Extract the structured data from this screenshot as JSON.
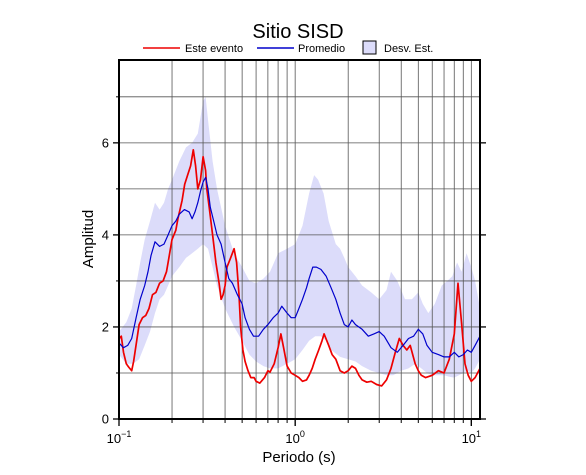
{
  "chart_data": {
    "type": "line",
    "title": "Sitio SISD",
    "xlabel": "Periodo (s)",
    "ylabel": "Amplitud",
    "x_scale": "log",
    "xlim": [
      0.1,
      11.2
    ],
    "ylim": [
      0,
      7.8
    ],
    "grid": true,
    "legend_position": "top",
    "x_ticks": [
      {
        "value": 0.1,
        "base": "10",
        "exp": "−1"
      },
      {
        "value": 1,
        "base": "10",
        "exp": "0"
      },
      {
        "value": 10,
        "base": "10",
        "exp": "1"
      }
    ],
    "y_ticks": [
      0,
      2,
      4,
      6
    ],
    "legend": {
      "line1": "Este evento",
      "line2": "Promedio",
      "band": "Desv. Est."
    },
    "series": [
      {
        "name": "Este evento",
        "color": "#ee0000",
        "points": [
          [
            0.1,
            1.75
          ],
          [
            0.103,
            1.8
          ],
          [
            0.106,
            1.45
          ],
          [
            0.11,
            1.2
          ],
          [
            0.114,
            1.12
          ],
          [
            0.118,
            1.05
          ],
          [
            0.121,
            1.25
          ],
          [
            0.126,
            1.7
          ],
          [
            0.13,
            2.05
          ],
          [
            0.136,
            2.2
          ],
          [
            0.142,
            2.25
          ],
          [
            0.148,
            2.4
          ],
          [
            0.155,
            2.7
          ],
          [
            0.162,
            2.75
          ],
          [
            0.17,
            2.95
          ],
          [
            0.178,
            3.0
          ],
          [
            0.186,
            3.2
          ],
          [
            0.19,
            3.4
          ],
          [
            0.2,
            3.9
          ],
          [
            0.21,
            4.1
          ],
          [
            0.216,
            4.35
          ],
          [
            0.228,
            4.75
          ],
          [
            0.236,
            5.1
          ],
          [
            0.245,
            5.3
          ],
          [
            0.255,
            5.5
          ],
          [
            0.264,
            5.85
          ],
          [
            0.272,
            5.5
          ],
          [
            0.28,
            5.0
          ],
          [
            0.29,
            5.2
          ],
          [
            0.3,
            5.7
          ],
          [
            0.31,
            5.4
          ],
          [
            0.315,
            5.0
          ],
          [
            0.325,
            4.6
          ],
          [
            0.34,
            4.0
          ],
          [
            0.355,
            3.4
          ],
          [
            0.37,
            2.95
          ],
          [
            0.38,
            2.6
          ],
          [
            0.39,
            2.7
          ],
          [
            0.4,
            2.9
          ],
          [
            0.41,
            3.3
          ],
          [
            0.43,
            3.5
          ],
          [
            0.45,
            3.7
          ],
          [
            0.465,
            3.4
          ],
          [
            0.48,
            2.7
          ],
          [
            0.49,
            2.0
          ],
          [
            0.505,
            1.5
          ],
          [
            0.52,
            1.25
          ],
          [
            0.54,
            1.05
          ],
          [
            0.56,
            0.9
          ],
          [
            0.585,
            0.9
          ],
          [
            0.6,
            0.82
          ],
          [
            0.63,
            0.78
          ],
          [
            0.67,
            0.9
          ],
          [
            0.7,
            1.05
          ],
          [
            0.72,
            1.02
          ],
          [
            0.76,
            1.2
          ],
          [
            0.8,
            1.55
          ],
          [
            0.83,
            1.85
          ],
          [
            0.86,
            1.55
          ],
          [
            0.9,
            1.15
          ],
          [
            0.95,
            1.0
          ],
          [
            1.0,
            0.95
          ],
          [
            1.05,
            0.9
          ],
          [
            1.1,
            0.82
          ],
          [
            1.16,
            0.85
          ],
          [
            1.2,
            0.95
          ],
          [
            1.25,
            1.1
          ],
          [
            1.3,
            1.3
          ],
          [
            1.36,
            1.5
          ],
          [
            1.42,
            1.7
          ],
          [
            1.46,
            1.85
          ],
          [
            1.55,
            1.6
          ],
          [
            1.62,
            1.4
          ],
          [
            1.7,
            1.3
          ],
          [
            1.8,
            1.05
          ],
          [
            1.9,
            1.0
          ],
          [
            2.0,
            1.05
          ],
          [
            2.1,
            1.15
          ],
          [
            2.2,
            1.1
          ],
          [
            2.3,
            0.95
          ],
          [
            2.4,
            0.85
          ],
          [
            2.55,
            0.8
          ],
          [
            2.7,
            0.82
          ],
          [
            2.9,
            0.75
          ],
          [
            3.1,
            0.72
          ],
          [
            3.3,
            0.85
          ],
          [
            3.5,
            1.1
          ],
          [
            3.7,
            1.45
          ],
          [
            3.9,
            1.75
          ],
          [
            4.1,
            1.6
          ],
          [
            4.3,
            1.5
          ],
          [
            4.5,
            1.6
          ],
          [
            4.8,
            1.2
          ],
          [
            5.0,
            1.05
          ],
          [
            5.2,
            0.95
          ],
          [
            5.5,
            0.9
          ],
          [
            6.0,
            0.95
          ],
          [
            6.5,
            1.05
          ],
          [
            7.0,
            1.0
          ],
          [
            7.5,
            1.3
          ],
          [
            8.0,
            1.85
          ],
          [
            8.4,
            2.95
          ],
          [
            8.8,
            2.1
          ],
          [
            9.2,
            1.2
          ],
          [
            9.6,
            0.95
          ],
          [
            10.0,
            0.82
          ],
          [
            10.5,
            0.9
          ],
          [
            11.2,
            1.1
          ]
        ]
      },
      {
        "name": "Promedio",
        "color": "#0000cc",
        "points": [
          [
            0.1,
            1.65
          ],
          [
            0.106,
            1.55
          ],
          [
            0.112,
            1.6
          ],
          [
            0.118,
            1.75
          ],
          [
            0.125,
            2.2
          ],
          [
            0.132,
            2.6
          ],
          [
            0.14,
            2.9
          ],
          [
            0.146,
            3.2
          ],
          [
            0.152,
            3.55
          ],
          [
            0.16,
            3.85
          ],
          [
            0.17,
            3.75
          ],
          [
            0.18,
            3.8
          ],
          [
            0.19,
            4.0
          ],
          [
            0.2,
            4.2
          ],
          [
            0.21,
            4.3
          ],
          [
            0.22,
            4.45
          ],
          [
            0.235,
            4.55
          ],
          [
            0.25,
            4.5
          ],
          [
            0.26,
            4.35
          ],
          [
            0.27,
            4.5
          ],
          [
            0.28,
            4.7
          ],
          [
            0.29,
            4.95
          ],
          [
            0.3,
            5.15
          ],
          [
            0.31,
            5.25
          ],
          [
            0.32,
            5.0
          ],
          [
            0.33,
            4.6
          ],
          [
            0.345,
            4.3
          ],
          [
            0.36,
            4.0
          ],
          [
            0.38,
            3.8
          ],
          [
            0.4,
            3.4
          ],
          [
            0.42,
            3.05
          ],
          [
            0.44,
            2.95
          ],
          [
            0.47,
            2.7
          ],
          [
            0.5,
            2.5
          ],
          [
            0.52,
            2.2
          ],
          [
            0.55,
            1.95
          ],
          [
            0.58,
            1.8
          ],
          [
            0.62,
            1.8
          ],
          [
            0.66,
            1.95
          ],
          [
            0.7,
            2.05
          ],
          [
            0.75,
            2.2
          ],
          [
            0.8,
            2.3
          ],
          [
            0.84,
            2.45
          ],
          [
            0.9,
            2.3
          ],
          [
            0.95,
            2.2
          ],
          [
            1.0,
            2.2
          ],
          [
            1.05,
            2.4
          ],
          [
            1.1,
            2.6
          ],
          [
            1.16,
            2.85
          ],
          [
            1.2,
            3.05
          ],
          [
            1.26,
            3.3
          ],
          [
            1.32,
            3.3
          ],
          [
            1.4,
            3.25
          ],
          [
            1.5,
            3.1
          ],
          [
            1.6,
            2.85
          ],
          [
            1.7,
            2.6
          ],
          [
            1.8,
            2.3
          ],
          [
            1.9,
            2.05
          ],
          [
            2.0,
            2.0
          ],
          [
            2.1,
            2.15
          ],
          [
            2.2,
            2.05
          ],
          [
            2.4,
            1.95
          ],
          [
            2.6,
            1.8
          ],
          [
            2.8,
            1.85
          ],
          [
            3.0,
            1.9
          ],
          [
            3.2,
            1.8
          ],
          [
            3.5,
            1.55
          ],
          [
            3.8,
            1.45
          ],
          [
            4.1,
            1.6
          ],
          [
            4.4,
            1.75
          ],
          [
            4.7,
            1.8
          ],
          [
            5.0,
            1.95
          ],
          [
            5.3,
            1.85
          ],
          [
            5.6,
            1.6
          ],
          [
            6.0,
            1.45
          ],
          [
            6.5,
            1.4
          ],
          [
            7.0,
            1.35
          ],
          [
            7.5,
            1.35
          ],
          [
            8.0,
            1.45
          ],
          [
            8.5,
            1.35
          ],
          [
            9.0,
            1.4
          ],
          [
            9.5,
            1.5
          ],
          [
            10.0,
            1.45
          ],
          [
            10.5,
            1.6
          ],
          [
            11.2,
            1.8
          ]
        ]
      }
    ],
    "std_band": {
      "name": "Desv. Est.",
      "fill": "#dcdcfa",
      "upper": [
        [
          0.1,
          1.9
        ],
        [
          0.11,
          2.1
        ],
        [
          0.118,
          2.4
        ],
        [
          0.125,
          2.9
        ],
        [
          0.132,
          3.4
        ],
        [
          0.14,
          3.9
        ],
        [
          0.15,
          4.3
        ],
        [
          0.16,
          4.7
        ],
        [
          0.17,
          4.55
        ],
        [
          0.18,
          4.7
        ],
        [
          0.19,
          5.0
        ],
        [
          0.2,
          5.2
        ],
        [
          0.22,
          5.6
        ],
        [
          0.24,
          5.9
        ],
        [
          0.26,
          6.0
        ],
        [
          0.28,
          6.2
        ],
        [
          0.3,
          6.9
        ],
        [
          0.31,
          7.0
        ],
        [
          0.32,
          6.5
        ],
        [
          0.34,
          5.6
        ],
        [
          0.36,
          5.0
        ],
        [
          0.4,
          4.2
        ],
        [
          0.45,
          3.6
        ],
        [
          0.5,
          3.3
        ],
        [
          0.55,
          3.0
        ],
        [
          0.6,
          2.95
        ],
        [
          0.66,
          3.05
        ],
        [
          0.72,
          3.2
        ],
        [
          0.8,
          3.6
        ],
        [
          0.9,
          3.7
        ],
        [
          1.0,
          3.8
        ],
        [
          1.1,
          4.2
        ],
        [
          1.2,
          4.9
        ],
        [
          1.28,
          5.3
        ],
        [
          1.35,
          5.2
        ],
        [
          1.45,
          4.9
        ],
        [
          1.55,
          4.3
        ],
        [
          1.7,
          3.8
        ],
        [
          1.8,
          3.7
        ],
        [
          1.9,
          3.5
        ],
        [
          2.0,
          3.3
        ],
        [
          2.2,
          3.1
        ],
        [
          2.4,
          2.9
        ],
        [
          2.7,
          2.75
        ],
        [
          3.0,
          2.6
        ],
        [
          3.3,
          2.8
        ],
        [
          3.5,
          3.2
        ],
        [
          3.8,
          3.0
        ],
        [
          4.2,
          2.6
        ],
        [
          4.6,
          2.6
        ],
        [
          5.0,
          2.75
        ],
        [
          5.3,
          2.5
        ],
        [
          5.7,
          2.3
        ],
        [
          6.2,
          2.5
        ],
        [
          6.8,
          2.9
        ],
        [
          7.3,
          3.0
        ],
        [
          7.8,
          3.1
        ],
        [
          8.3,
          3.4
        ],
        [
          8.8,
          3.2
        ],
        [
          9.4,
          3.6
        ],
        [
          10.0,
          3.3
        ],
        [
          10.5,
          3.0
        ],
        [
          11.2,
          2.4
        ]
      ],
      "lower": [
        [
          0.1,
          1.4
        ],
        [
          0.11,
          1.2
        ],
        [
          0.12,
          1.2
        ],
        [
          0.13,
          1.3
        ],
        [
          0.14,
          1.6
        ],
        [
          0.15,
          1.9
        ],
        [
          0.16,
          2.3
        ],
        [
          0.17,
          2.6
        ],
        [
          0.18,
          2.7
        ],
        [
          0.19,
          2.9
        ],
        [
          0.2,
          3.1
        ],
        [
          0.22,
          3.3
        ],
        [
          0.24,
          3.5
        ],
        [
          0.26,
          3.6
        ],
        [
          0.28,
          3.7
        ],
        [
          0.3,
          3.8
        ],
        [
          0.32,
          3.7
        ],
        [
          0.34,
          3.3
        ],
        [
          0.36,
          2.9
        ],
        [
          0.4,
          2.4
        ],
        [
          0.45,
          2.0
        ],
        [
          0.5,
          1.7
        ],
        [
          0.55,
          1.4
        ],
        [
          0.6,
          1.25
        ],
        [
          0.66,
          1.15
        ],
        [
          0.72,
          1.1
        ],
        [
          0.8,
          1.1
        ],
        [
          0.9,
          1.2
        ],
        [
          1.0,
          1.3
        ],
        [
          1.1,
          1.5
        ],
        [
          1.2,
          1.7
        ],
        [
          1.3,
          1.8
        ],
        [
          1.4,
          1.8
        ],
        [
          1.5,
          1.7
        ],
        [
          1.6,
          1.5
        ],
        [
          1.8,
          1.35
        ],
        [
          2.0,
          1.3
        ],
        [
          2.2,
          1.25
        ],
        [
          2.4,
          1.15
        ],
        [
          2.7,
          1.05
        ],
        [
          3.0,
          1.0
        ],
        [
          3.3,
          0.95
        ],
        [
          3.6,
          0.95
        ],
        [
          4.0,
          1.05
        ],
        [
          4.4,
          1.1
        ],
        [
          4.8,
          1.2
        ],
        [
          5.2,
          1.1
        ],
        [
          5.6,
          1.0
        ],
        [
          6.0,
          0.95
        ],
        [
          6.5,
          0.95
        ],
        [
          7.0,
          0.95
        ],
        [
          7.5,
          0.92
        ],
        [
          8.0,
          0.9
        ],
        [
          8.5,
          0.95
        ],
        [
          9.0,
          1.0
        ],
        [
          9.5,
          1.05
        ],
        [
          10.0,
          1.0
        ],
        [
          10.5,
          1.1
        ],
        [
          11.2,
          1.3
        ]
      ]
    }
  }
}
